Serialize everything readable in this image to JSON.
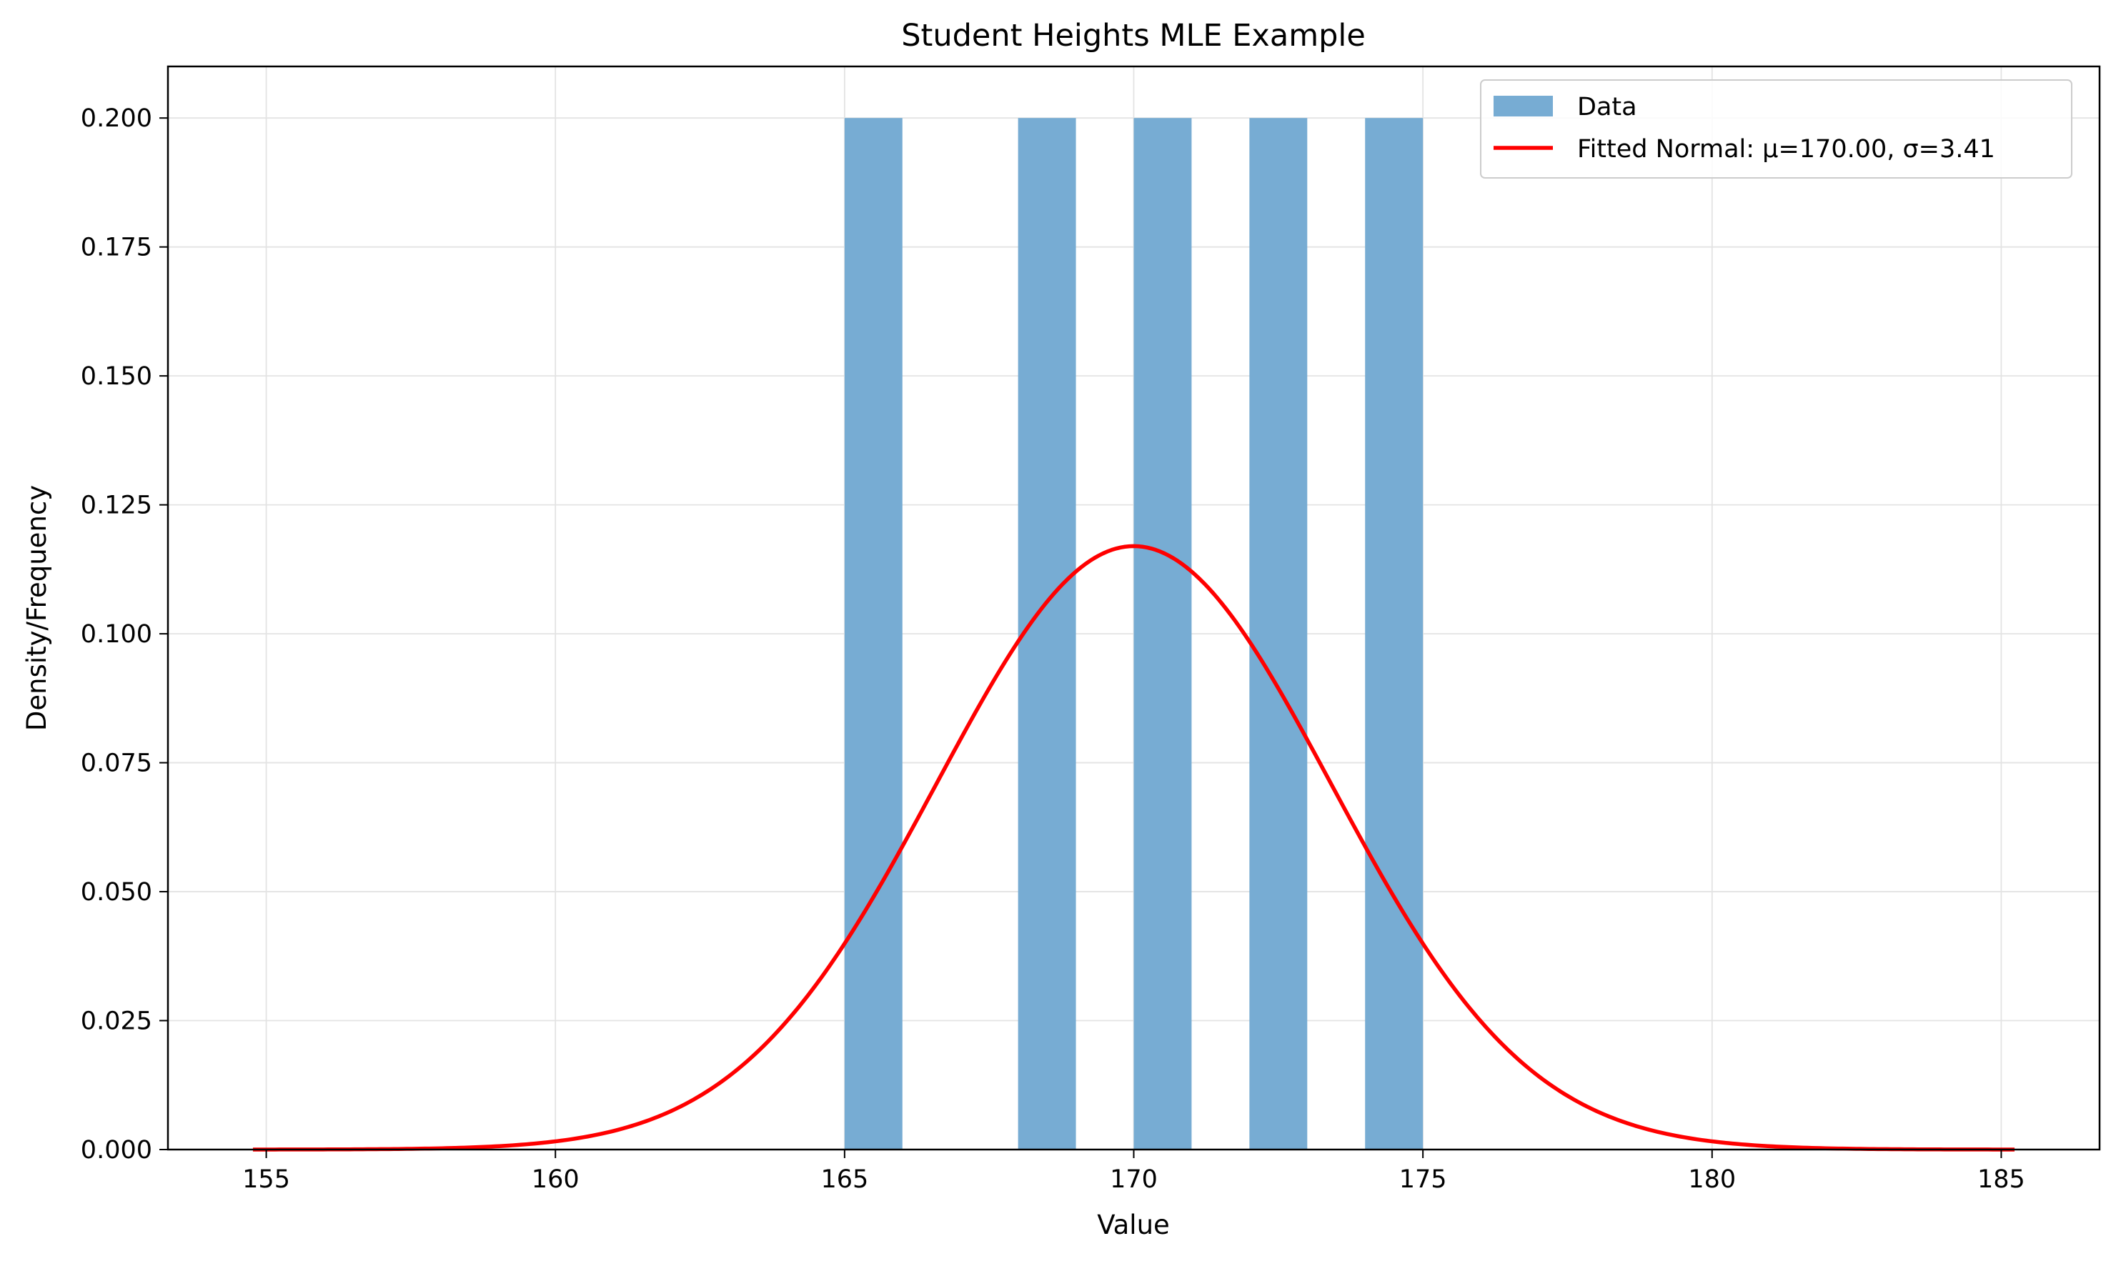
{
  "chart_data": {
    "type": "bar",
    "title": "Student Heights MLE Example",
    "xlabel": "Value",
    "ylabel": "Density/Frequency",
    "xlim": [
      153.3,
      186.7
    ],
    "ylim": [
      0,
      0.21
    ],
    "xticks": [
      "155",
      "160",
      "165",
      "170",
      "175",
      "180",
      "185"
    ],
    "yticks": [
      "0.000",
      "0.025",
      "0.050",
      "0.075",
      "0.100",
      "0.125",
      "0.150",
      "0.175",
      "0.200"
    ],
    "grid": true,
    "legend_position": "top-right",
    "histogram": {
      "name": "Data",
      "color": "#77acd3",
      "bins": [
        {
          "x0": 165,
          "x1": 166,
          "density": 0.2
        },
        {
          "x0": 166,
          "x1": 167,
          "density": 0
        },
        {
          "x0": 167,
          "x1": 168,
          "density": 0
        },
        {
          "x0": 168,
          "x1": 169,
          "density": 0.2
        },
        {
          "x0": 169,
          "x1": 170,
          "density": 0
        },
        {
          "x0": 170,
          "x1": 171,
          "density": 0.2
        },
        {
          "x0": 171,
          "x1": 172,
          "density": 0
        },
        {
          "x0": 172,
          "x1": 173,
          "density": 0.2
        },
        {
          "x0": 173,
          "x1": 174,
          "density": 0
        },
        {
          "x0": 174,
          "x1": 175,
          "density": 0.2
        }
      ]
    },
    "fitted_curve": {
      "name": "Fitted Normal: μ=170.00, σ=3.41",
      "color": "#ff0000",
      "mu": 170.0,
      "sigma": 3.41,
      "x_range": [
        154.77,
        185.23
      ]
    }
  }
}
